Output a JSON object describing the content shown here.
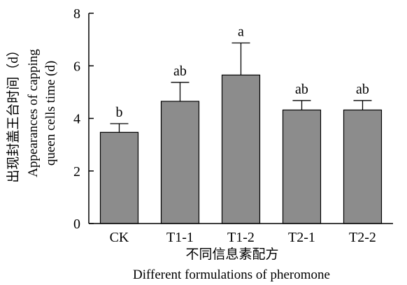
{
  "chart_data": {
    "type": "bar",
    "categories": [
      "CK",
      "T1-1",
      "T1-2",
      "T2-1",
      "T2-2"
    ],
    "values": [
      3.47,
      4.65,
      5.65,
      4.32,
      4.32
    ],
    "errors": [
      0.33,
      0.72,
      1.22,
      0.36,
      0.36
    ],
    "significance": [
      "b",
      "ab",
      "a",
      "ab",
      "ab"
    ],
    "ylim": [
      0,
      8
    ],
    "yticks": [
      0,
      2,
      4,
      6,
      8
    ],
    "xlabel_zh": "不同信息素配方",
    "xlabel_en": "Different formulations of pheromone",
    "ylabel_zh": "出现封盖王台时间（d）",
    "ylabel_en_line1": "Appearances of capping",
    "ylabel_en_line2": "queen cells time (d)",
    "bar_color": "#8c8c8c",
    "grid": false,
    "legend": "none"
  }
}
